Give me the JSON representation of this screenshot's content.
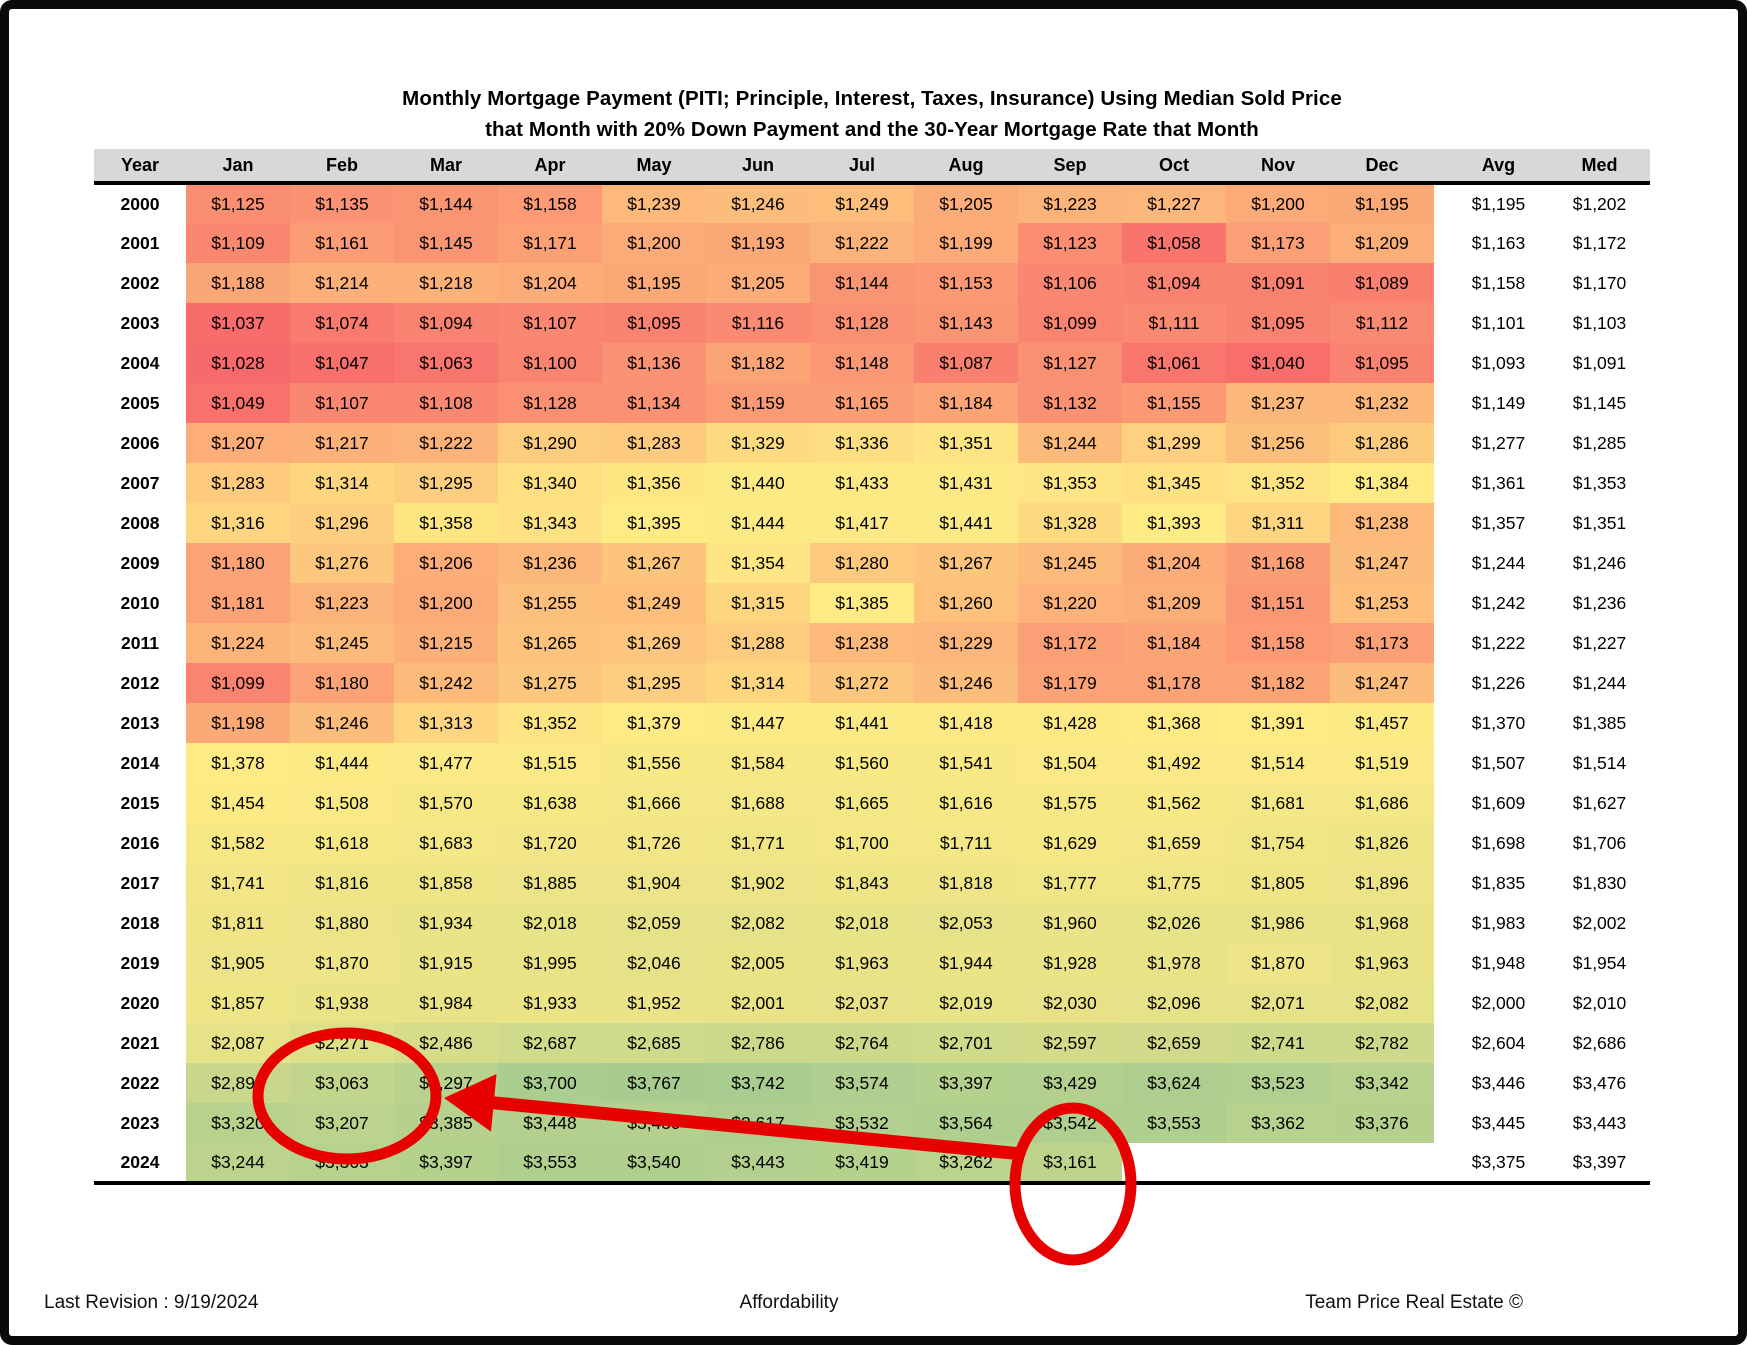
{
  "page": {
    "title_line1": "Monthly Mortgage Payment (PITI; Principle, Interest, Taxes, Insurance) Using Median Sold Price",
    "title_line2": "that Month with 20% Down Payment and the 30-Year Mortgage Rate that Month",
    "footer_left": "Last Revision : 9/19/2024",
    "footer_center": "Affordability",
    "footer_right": "Team Price Real Estate ©"
  },
  "chart_data": {
    "type": "heatmap",
    "title": "Monthly Mortgage Payment (PITI; Principle, Interest, Taxes, Insurance) Using Median Sold Price that Month with 20% Down Payment and the 30-Year Mortgage Rate that Month",
    "columns": [
      "Year",
      "Jan",
      "Feb",
      "Mar",
      "Apr",
      "May",
      "Jun",
      "Jul",
      "Aug",
      "Sep",
      "Oct",
      "Nov",
      "Dec",
      "Avg",
      "Med"
    ],
    "value_format": "$#,##0",
    "rows": [
      {
        "year": "2000",
        "months": [
          1125,
          1135,
          1144,
          1158,
          1239,
          1246,
          1249,
          1205,
          1223,
          1227,
          1200,
          1195
        ],
        "avg": 1195,
        "med": 1202
      },
      {
        "year": "2001",
        "months": [
          1109,
          1161,
          1145,
          1171,
          1200,
          1193,
          1222,
          1199,
          1123,
          1058,
          1173,
          1209
        ],
        "avg": 1163,
        "med": 1172
      },
      {
        "year": "2002",
        "months": [
          1188,
          1214,
          1218,
          1204,
          1195,
          1205,
          1144,
          1153,
          1106,
          1094,
          1091,
          1089
        ],
        "avg": 1158,
        "med": 1170
      },
      {
        "year": "2003",
        "months": [
          1037,
          1074,
          1094,
          1107,
          1095,
          1116,
          1128,
          1143,
          1099,
          1111,
          1095,
          1112
        ],
        "avg": 1101,
        "med": 1103
      },
      {
        "year": "2004",
        "months": [
          1028,
          1047,
          1063,
          1100,
          1136,
          1182,
          1148,
          1087,
          1127,
          1061,
          1040,
          1095
        ],
        "avg": 1093,
        "med": 1091
      },
      {
        "year": "2005",
        "months": [
          1049,
          1107,
          1108,
          1128,
          1134,
          1159,
          1165,
          1184,
          1132,
          1155,
          1237,
          1232
        ],
        "avg": 1149,
        "med": 1145
      },
      {
        "year": "2006",
        "months": [
          1207,
          1217,
          1222,
          1290,
          1283,
          1329,
          1336,
          1351,
          1244,
          1299,
          1256,
          1286
        ],
        "avg": 1277,
        "med": 1285
      },
      {
        "year": "2007",
        "months": [
          1283,
          1314,
          1295,
          1340,
          1356,
          1440,
          1433,
          1431,
          1353,
          1345,
          1352,
          1384
        ],
        "avg": 1361,
        "med": 1353
      },
      {
        "year": "2008",
        "months": [
          1316,
          1296,
          1358,
          1343,
          1395,
          1444,
          1417,
          1441,
          1328,
          1393,
          1311,
          1238
        ],
        "avg": 1357,
        "med": 1351
      },
      {
        "year": "2009",
        "months": [
          1180,
          1276,
          1206,
          1236,
          1267,
          1354,
          1280,
          1267,
          1245,
          1204,
          1168,
          1247
        ],
        "avg": 1244,
        "med": 1246
      },
      {
        "year": "2010",
        "months": [
          1181,
          1223,
          1200,
          1255,
          1249,
          1315,
          1385,
          1260,
          1220,
          1209,
          1151,
          1253
        ],
        "avg": 1242,
        "med": 1236
      },
      {
        "year": "2011",
        "months": [
          1224,
          1245,
          1215,
          1265,
          1269,
          1288,
          1238,
          1229,
          1172,
          1184,
          1158,
          1173
        ],
        "avg": 1222,
        "med": 1227
      },
      {
        "year": "2012",
        "months": [
          1099,
          1180,
          1242,
          1275,
          1295,
          1314,
          1272,
          1246,
          1179,
          1178,
          1182,
          1247
        ],
        "avg": 1226,
        "med": 1244
      },
      {
        "year": "2013",
        "months": [
          1198,
          1246,
          1313,
          1352,
          1379,
          1447,
          1441,
          1418,
          1428,
          1368,
          1391,
          1457
        ],
        "avg": 1370,
        "med": 1385
      },
      {
        "year": "2014",
        "months": [
          1378,
          1444,
          1477,
          1515,
          1556,
          1584,
          1560,
          1541,
          1504,
          1492,
          1514,
          1519
        ],
        "avg": 1507,
        "med": 1514
      },
      {
        "year": "2015",
        "months": [
          1454,
          1508,
          1570,
          1638,
          1666,
          1688,
          1665,
          1616,
          1575,
          1562,
          1681,
          1686
        ],
        "avg": 1609,
        "med": 1627
      },
      {
        "year": "2016",
        "months": [
          1582,
          1618,
          1683,
          1720,
          1726,
          1771,
          1700,
          1711,
          1629,
          1659,
          1754,
          1826
        ],
        "avg": 1698,
        "med": 1706
      },
      {
        "year": "2017",
        "months": [
          1741,
          1816,
          1858,
          1885,
          1904,
          1902,
          1843,
          1818,
          1777,
          1775,
          1805,
          1896
        ],
        "avg": 1835,
        "med": 1830
      },
      {
        "year": "2018",
        "months": [
          1811,
          1880,
          1934,
          2018,
          2059,
          2082,
          2018,
          2053,
          1960,
          2026,
          1986,
          1968
        ],
        "avg": 1983,
        "med": 2002
      },
      {
        "year": "2019",
        "months": [
          1905,
          1870,
          1915,
          1995,
          2046,
          2005,
          1963,
          1944,
          1928,
          1978,
          1870,
          1963
        ],
        "avg": 1948,
        "med": 1954
      },
      {
        "year": "2020",
        "months": [
          1857,
          1938,
          1984,
          1933,
          1952,
          2001,
          2037,
          2019,
          2030,
          2096,
          2071,
          2082
        ],
        "avg": 2000,
        "med": 2010
      },
      {
        "year": "2021",
        "months": [
          2087,
          2271,
          2486,
          2687,
          2685,
          2786,
          2764,
          2701,
          2597,
          2659,
          2741,
          2782
        ],
        "avg": 2604,
        "med": 2686
      },
      {
        "year": "2022",
        "months": [
          2891,
          3063,
          3297,
          3700,
          3767,
          3742,
          3574,
          3397,
          3429,
          3624,
          3523,
          3342
        ],
        "avg": 3446,
        "med": 3476
      },
      {
        "year": "2023",
        "months": [
          3320,
          3207,
          3385,
          3448,
          3439,
          3617,
          3532,
          3564,
          3542,
          3553,
          3362,
          3376
        ],
        "avg": 3445,
        "med": 3443
      },
      {
        "year": "2024",
        "months": [
          3244,
          3363,
          3397,
          3553,
          3540,
          3443,
          3419,
          3262,
          3161,
          null,
          null,
          null
        ],
        "avg": 3375,
        "med": 3397
      }
    ],
    "color_scale": {
      "stops": [
        {
          "value": 1028,
          "color": "#F8696B"
        },
        {
          "value": 1370,
          "color": "#FFEB84"
        },
        {
          "value": 3767,
          "color": "#A8CC90"
        }
      ],
      "header_bg": "#D8D8D8"
    },
    "annotations": {
      "accent_color": "#E60000",
      "circle_1_target": "Feb column, rows 2021-2023 (centered on $3,063 Feb 2022)",
      "circle_2_target": "Sep 2024 ($3,161)",
      "arrow": "from Sep 2024 circle pointing to Feb 2022 circle"
    }
  }
}
